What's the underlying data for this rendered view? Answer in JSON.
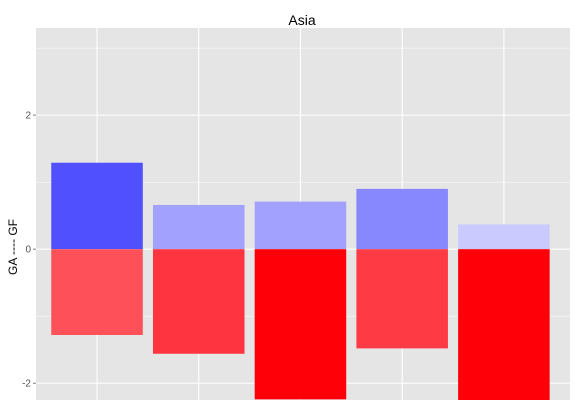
{
  "chart_data": {
    "type": "bar",
    "title": "Asia",
    "xlabel": "",
    "ylabel": "GA ---- GF",
    "ylim": [
      -2.25,
      3.3
    ],
    "yticks": [
      -2,
      0,
      2
    ],
    "grid": true,
    "legend": "none",
    "colors": {
      "panel_bg": "#e5e5e5",
      "grid": "#ffffff",
      "axis_text": "#555555",
      "title_text": "#000000"
    },
    "bars": [
      {
        "gf": 1.29,
        "gf_color": "#5050fe",
        "ga": -1.28,
        "ga_color": "#fe5058"
      },
      {
        "gf": 0.66,
        "gf_color": "#a2a2fe",
        "ga": -1.56,
        "ga_color": "#fe3440"
      },
      {
        "gf": 0.71,
        "gf_color": "#a2a2fe",
        "ga": -2.24,
        "ga_color": "#fe0008"
      },
      {
        "gf": 0.9,
        "gf_color": "#8888fe",
        "ga": -1.48,
        "ga_color": "#fe3a45"
      },
      {
        "gf": 0.37,
        "gf_color": "#cacafe",
        "ga": -2.26,
        "ga_color": "#fe0008"
      }
    ]
  }
}
